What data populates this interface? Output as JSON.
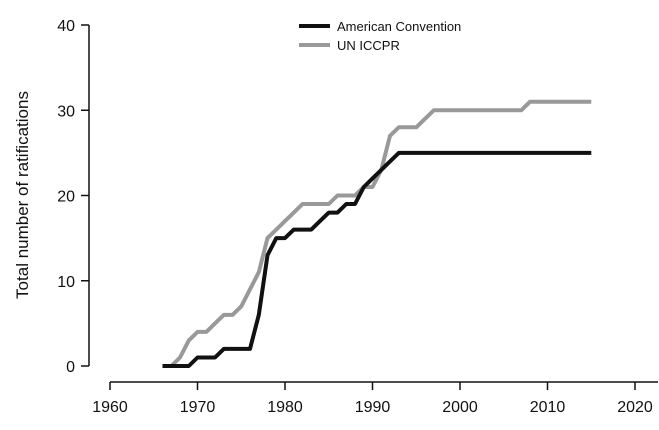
{
  "chart_data": {
    "type": "line",
    "title": "",
    "xlabel": "",
    "ylabel": "Total number of ratifications",
    "xlim": [
      1955,
      2022
    ],
    "ylim": [
      0,
      40
    ],
    "xticks": [
      1960,
      1970,
      1980,
      1990,
      2000,
      2010,
      2020
    ],
    "yticks": [
      0,
      10,
      20,
      30,
      40
    ],
    "grid": false,
    "legend_position": "top-center",
    "series": [
      {
        "name": "American Convention",
        "color": "#111111",
        "x": [
          1966,
          1967,
          1968,
          1969,
          1970,
          1971,
          1972,
          1973,
          1974,
          1975,
          1976,
          1977,
          1978,
          1979,
          1980,
          1981,
          1982,
          1983,
          1984,
          1985,
          1986,
          1987,
          1988,
          1989,
          1990,
          1991,
          1992,
          1993,
          2000,
          2010,
          2015
        ],
        "y": [
          0,
          0,
          0,
          0,
          1,
          1,
          1,
          2,
          2,
          2,
          2,
          6,
          13,
          15,
          15,
          16,
          16,
          16,
          17,
          18,
          18,
          19,
          19,
          21,
          22,
          23,
          24,
          25,
          25,
          25,
          25
        ]
      },
      {
        "name": "UN ICCPR",
        "color": "#999999",
        "x": [
          1966,
          1967,
          1968,
          1969,
          1970,
          1971,
          1972,
          1973,
          1974,
          1975,
          1976,
          1977,
          1978,
          1979,
          1980,
          1981,
          1982,
          1983,
          1984,
          1985,
          1986,
          1987,
          1988,
          1989,
          1990,
          1991,
          1992,
          1993,
          1994,
          1995,
          1996,
          1997,
          2000,
          2005,
          2007,
          2008,
          2010,
          2015
        ],
        "y": [
          0,
          0,
          1,
          3,
          4,
          4,
          5,
          6,
          6,
          7,
          9,
          11,
          15,
          16,
          17,
          18,
          19,
          19,
          19,
          19,
          20,
          20,
          20,
          21,
          21,
          23,
          27,
          28,
          28,
          28,
          29,
          30,
          30,
          30,
          30,
          31,
          31,
          31
        ]
      }
    ]
  }
}
